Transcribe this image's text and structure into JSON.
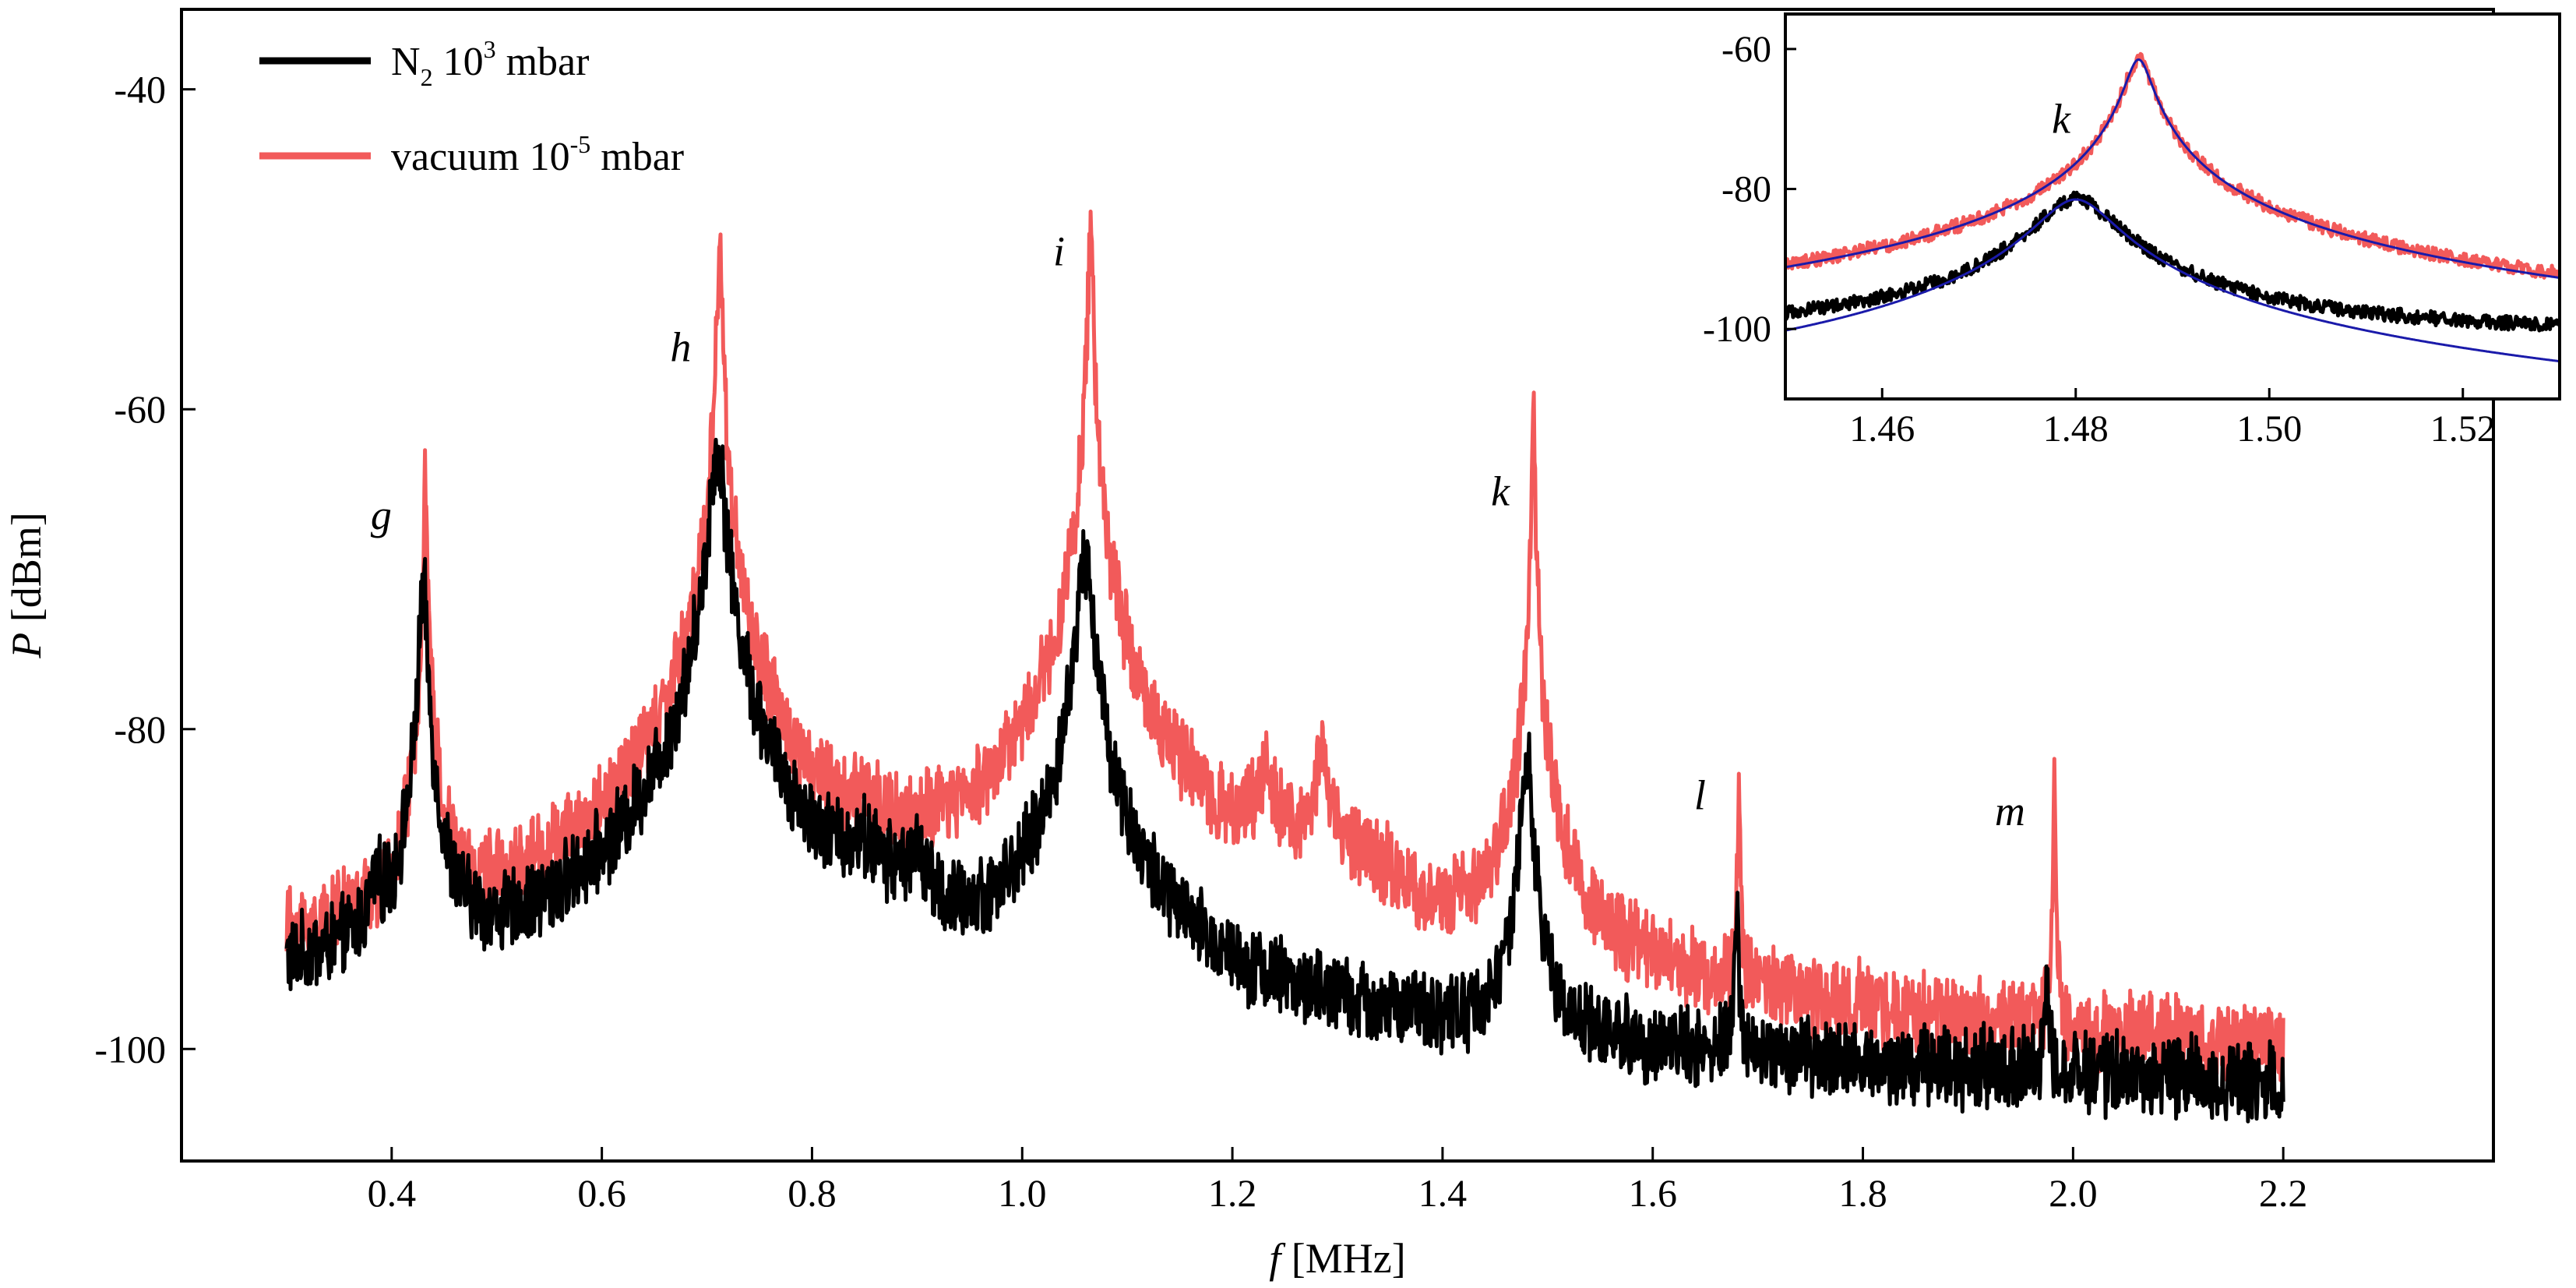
{
  "chart_data": [
    {
      "type": "line",
      "xlabel": {
        "var": "f",
        "unit": " [MHz]"
      },
      "ylabel": {
        "var": "P",
        "unit": " [dBm]"
      },
      "xlim": [
        0.2,
        2.4
      ],
      "ylim": [
        -107,
        -35
      ],
      "xticks": [
        0.4,
        0.6,
        0.8,
        1.0,
        1.2,
        1.4,
        1.6,
        1.8,
        2.0,
        2.2
      ],
      "xtick_labels": [
        "0.4",
        "0.6",
        "0.8",
        "1.0",
        "1.2",
        "1.4",
        "1.6",
        "1.8",
        "2.0",
        "2.2"
      ],
      "yticks": [
        -40,
        -60,
        -80,
        -100
      ],
      "ytick_labels": [
        "-40",
        "-60",
        "-80",
        "-100"
      ],
      "grid": false,
      "legend_position": "top-left",
      "legend": [
        {
          "base": "N",
          "sub": "2",
          "mid": " 10",
          "sup": "3",
          "tail": " mbar",
          "color": "#000000"
        },
        {
          "base": "vacuum 10",
          "sup": "-5",
          "tail": " mbar",
          "color": "#f25a5a"
        }
      ],
      "series": [
        {
          "color": "#000000",
          "x_range": [
            0.3,
            2.2
          ],
          "baseline": [
            [
              0.3,
              -97
            ],
            [
              0.45,
              -97
            ],
            [
              0.5,
              -100
            ],
            [
              0.65,
              -100.5
            ],
            [
              0.68,
              -99
            ],
            [
              0.73,
              -101.5
            ],
            [
              0.78,
              -98.5
            ],
            [
              0.85,
              -90
            ],
            [
              0.93,
              -101
            ],
            [
              1.0,
              -97
            ],
            [
              1.05,
              -101
            ],
            [
              1.1,
              -101
            ],
            [
              1.4,
              -101.5
            ],
            [
              1.5,
              -102
            ],
            [
              2.2,
              -103
            ]
          ],
          "peaks": [
            {
              "x": 0.385,
              "y": -93,
              "width": 0.005
            },
            {
              "x": 0.43,
              "y": -71,
              "width": 0.003
            },
            {
              "x": 0.71,
              "y": -62.5,
              "width": 0.006
            },
            {
              "x": 0.898,
              "y": -91,
              "width": 0.012
            },
            {
              "x": 1.06,
              "y": -69,
              "width": 0.006
            },
            {
              "x": 1.48,
              "y": -81.5,
              "width": 0.004
            },
            {
              "x": 1.68,
              "y": -92,
              "width": 0.0015
            },
            {
              "x": 1.975,
              "y": -97,
              "width": 0.002
            }
          ],
          "noise": 2.2
        },
        {
          "color": "#f25a5a",
          "x_range": [
            0.3,
            2.2
          ],
          "baseline": [
            [
              0.3,
              -97
            ],
            [
              0.45,
              -97
            ],
            [
              0.5,
              -100
            ],
            [
              0.65,
              -100.5
            ],
            [
              0.68,
              -99
            ],
            [
              0.73,
              -101.5
            ],
            [
              0.78,
              -98.5
            ],
            [
              0.85,
              -91
            ],
            [
              0.93,
              -101
            ],
            [
              1.0,
              -97
            ],
            [
              1.05,
              -101
            ],
            [
              1.1,
              -99.5
            ],
            [
              1.17,
              -98
            ],
            [
              1.22,
              -93
            ],
            [
              1.28,
              -91
            ],
            [
              1.33,
              -90.5
            ],
            [
              1.36,
              -93
            ],
            [
              1.38,
              -98
            ],
            [
              1.42,
              -99.5
            ],
            [
              1.5,
              -102
            ],
            [
              2.2,
              -103
            ]
          ],
          "peaks": [
            {
              "x": 0.432,
              "y": -64.5,
              "width": 0.0015
            },
            {
              "x": 0.712,
              "y": -50,
              "width": 0.002
            },
            {
              "x": 1.065,
              "y": -49.5,
              "width": 0.002
            },
            {
              "x": 1.232,
              "y": -84.5,
              "width": 0.008
            },
            {
              "x": 1.285,
              "y": -83.5,
              "width": 0.007
            },
            {
              "x": 1.4865,
              "y": -61.5,
              "width": 0.0015
            },
            {
              "x": 1.682,
              "y": -83,
              "width": 0.0008
            },
            {
              "x": 1.982,
              "y": -83,
              "width": 0.0008
            }
          ],
          "noise": 2.2
        }
      ],
      "annotations": [
        {
          "text": "g",
          "x": 0.39,
          "y": -67.5
        },
        {
          "text": "h",
          "x": 0.675,
          "y": -57
        },
        {
          "text": "i",
          "x": 1.035,
          "y": -51
        },
        {
          "text": "k",
          "x": 1.455,
          "y": -66
        },
        {
          "text": "l",
          "x": 1.645,
          "y": -85
        },
        {
          "text": "m",
          "x": 1.94,
          "y": -86
        }
      ]
    },
    {
      "type": "line",
      "position": "top-right",
      "xlim": [
        1.45,
        1.53
      ],
      "ylim": [
        -110,
        -55
      ],
      "xticks": [
        1.46,
        1.48,
        1.5,
        1.52
      ],
      "xtick_labels": [
        "1.46",
        "1.48",
        "1.50",
        "1.52"
      ],
      "yticks": [
        -60,
        -80,
        -100
      ],
      "ytick_labels": [
        "-60",
        "-80",
        "-100"
      ],
      "series": [
        {
          "color": "#f25a5a",
          "peak_x": 1.4865,
          "peak_y": -61.5,
          "width": 0.0012,
          "floor": -101,
          "noise": 1.0
        },
        {
          "color": "#000000",
          "peak_x": 1.48,
          "peak_y": -81.5,
          "width": 0.0035,
          "floor": -101,
          "noise": 1.0
        },
        {
          "color": "#1a1aaa",
          "peak_x": 1.48,
          "peak_y": -81.5,
          "width": 0.0035,
          "fit": true
        },
        {
          "color": "#1a1aaa",
          "peak_x": 1.4865,
          "peak_y": -61.5,
          "width": 0.0012,
          "fit": true
        }
      ],
      "annotations": [
        {
          "text": "k",
          "x": 1.4785,
          "y": -72
        }
      ]
    }
  ]
}
